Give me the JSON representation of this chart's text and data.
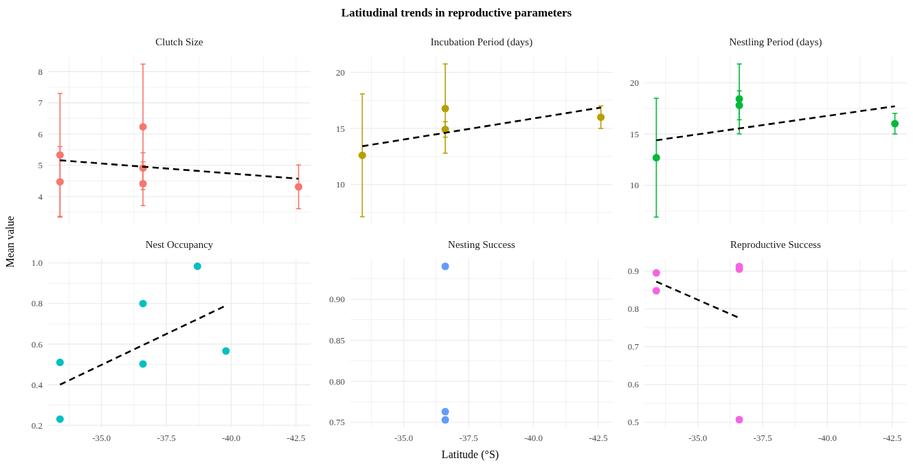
{
  "chart_data": [
    {
      "type": "scatter",
      "title": "Clutch Size",
      "annotations": [
        "Latitudinal trends in reproductive parameters"
      ],
      "grid": true,
      "tick_labels": "y",
      "xlim": [
        -32.94,
        -43.06
      ],
      "xticks": [
        {
          "value": -33.75,
          "label": null
        },
        {
          "value": -35,
          "label": null
        },
        {
          "value": -36.25,
          "label": null
        },
        {
          "value": -37.5,
          "label": null
        },
        {
          "value": -38.75,
          "label": null
        },
        {
          "value": -40,
          "label": null
        },
        {
          "value": -41.25,
          "label": null
        },
        {
          "value": -42.5,
          "label": null
        }
      ],
      "ylim": [
        3.1,
        8.49
      ],
      "yticks": [
        {
          "value": 3.5,
          "label": null
        },
        4,
        {
          "value": 4.5,
          "label": null
        },
        5,
        {
          "value": 5.5,
          "label": null
        },
        6,
        {
          "value": 6.5,
          "label": null
        },
        7,
        {
          "value": 7.5,
          "label": null
        },
        8
      ],
      "series": [
        {
          "type": "scatter",
          "color": "#f8766d",
          "marker": "circle",
          "x": [
            -33.4,
            -33.4,
            -36.6,
            -36.6,
            -36.6,
            -42.6
          ],
          "values": [
            5.33,
            4.47,
            6.23,
            4.91,
            4.41,
            4.31
          ],
          "errors": [
            1.97,
            1.13,
            2.01,
            0.49,
            0.7,
            0.7
          ]
        },
        {
          "type": "line",
          "color": "#000000",
          "line_style": "dashed",
          "marker": "none",
          "x": [
            -33.4,
            -42.6
          ],
          "values": [
            5.16,
            4.57
          ]
        }
      ]
    },
    {
      "type": "scatter",
      "title": "Incubation Period (days)",
      "grid": true,
      "tick_labels": "y",
      "xlim": [
        -32.94,
        -43.06
      ],
      "xticks": [
        {
          "value": -33.75,
          "label": null
        },
        {
          "value": -35,
          "label": null
        },
        {
          "value": -36.25,
          "label": null
        },
        {
          "value": -37.5,
          "label": null
        },
        {
          "value": -38.75,
          "label": null
        },
        {
          "value": -40,
          "label": null
        },
        {
          "value": -41.25,
          "label": null
        },
        {
          "value": -42.5,
          "label": null
        }
      ],
      "ylim": [
        6.42,
        21.43
      ],
      "yticks": [
        {
          "value": 7.5,
          "label": null
        },
        10,
        {
          "value": 12.5,
          "label": null
        },
        15,
        {
          "value": 17.5,
          "label": null
        },
        20
      ],
      "series": [
        {
          "type": "scatter",
          "color": "#b79f00",
          "marker": "circle",
          "x": [
            -33.4,
            -36.6,
            -36.6,
            -42.6
          ],
          "values": [
            12.6,
            16.77,
            14.91,
            16.0
          ],
          "errors": [
            5.48,
            3.98,
            0.69,
            1.0
          ]
        },
        {
          "type": "line",
          "color": "#000000",
          "line_style": "dashed",
          "marker": "none",
          "x": [
            -33.4,
            -42.6
          ],
          "values": [
            13.41,
            16.86
          ]
        }
      ]
    },
    {
      "type": "scatter",
      "title": "Nestling Period (days)",
      "grid": true,
      "tick_labels": "y",
      "xlim": [
        -32.94,
        -43.06
      ],
      "xticks": [
        {
          "value": -33.75,
          "label": null
        },
        {
          "value": -35,
          "label": null
        },
        {
          "value": -36.25,
          "label": null
        },
        {
          "value": -37.5,
          "label": null
        },
        {
          "value": -38.75,
          "label": null
        },
        {
          "value": -40,
          "label": null
        },
        {
          "value": -41.25,
          "label": null
        },
        {
          "value": -42.5,
          "label": null
        }
      ],
      "ylim": [
        6.17,
        22.59
      ],
      "yticks": [
        {
          "value": 7.5,
          "label": null
        },
        10,
        {
          "value": 12.5,
          "label": null
        },
        15,
        {
          "value": 17.5,
          "label": null
        },
        20
      ],
      "series": [
        {
          "type": "scatter",
          "color": "#00ba38",
          "marker": "circle",
          "x": [
            -33.4,
            -36.6,
            -36.6,
            -42.6
          ],
          "values": [
            12.7,
            18.43,
            17.81,
            16.02
          ],
          "errors": [
            5.8,
            3.41,
            1.41,
            1.0
          ]
        },
        {
          "type": "line",
          "color": "#000000",
          "line_style": "dashed",
          "marker": "none",
          "x": [
            -33.4,
            -42.6
          ],
          "values": [
            14.4,
            17.72
          ]
        }
      ]
    },
    {
      "type": "scatter",
      "title": "Nest Occupancy",
      "ylabel": "Mean value",
      "grid": true,
      "xlim": [
        -32.94,
        -43.06
      ],
      "xticks": [
        {
          "value": -33.75,
          "label": null
        },
        {
          "value": -35,
          "label": "-35.0"
        },
        {
          "value": -36.25,
          "label": null
        },
        {
          "value": -37.5,
          "label": "-37.5"
        },
        {
          "value": -38.75,
          "label": null
        },
        {
          "value": -40,
          "label": "-40.0"
        },
        {
          "value": -41.25,
          "label": null
        },
        {
          "value": -42.5,
          "label": "-42.5"
        }
      ],
      "ylim": [
        0.19,
        1.02
      ],
      "yticks": [
        {
          "value": 0.2,
          "label": "0.2"
        },
        {
          "value": 0.3,
          "label": null
        },
        {
          "value": 0.4,
          "label": "0.4"
        },
        {
          "value": 0.5,
          "label": null
        },
        {
          "value": 0.6,
          "label": "0.6"
        },
        {
          "value": 0.7,
          "label": null
        },
        {
          "value": 0.8,
          "label": "0.8"
        },
        {
          "value": 0.9,
          "label": null
        },
        {
          "value": 1.0,
          "label": "1.0"
        }
      ],
      "series": [
        {
          "type": "scatter",
          "color": "#00bfc4",
          "marker": "circle",
          "x": [
            -33.4,
            -33.4,
            -36.6,
            -36.6,
            -38.7,
            -39.8
          ],
          "values": [
            0.51,
            0.23,
            0.8,
            0.502,
            0.984,
            0.566
          ]
        },
        {
          "type": "line",
          "color": "#000000",
          "line_style": "dashed",
          "marker": "none",
          "x": [
            -33.4,
            -39.8
          ],
          "values": [
            0.4,
            0.79
          ]
        }
      ]
    },
    {
      "type": "scatter",
      "title": "Nesting Success",
      "xlabel": "Latitude (°S)",
      "grid": true,
      "xlim": [
        -32.94,
        -43.06
      ],
      "xticks": [
        {
          "value": -33.75,
          "label": null
        },
        {
          "value": -35,
          "label": "-35.0"
        },
        {
          "value": -36.25,
          "label": null
        },
        {
          "value": -37.5,
          "label": "-37.5"
        },
        {
          "value": -38.75,
          "label": null
        },
        {
          "value": -40,
          "label": "-40.0"
        },
        {
          "value": -41.25,
          "label": null
        },
        {
          "value": -42.5,
          "label": "-42.5"
        }
      ],
      "ylim": [
        0.744,
        0.949
      ],
      "yticks": [
        {
          "value": 0.75,
          "label": "0.75"
        },
        {
          "value": 0.775,
          "label": null
        },
        {
          "value": 0.8,
          "label": "0.80"
        },
        {
          "value": 0.825,
          "label": null
        },
        {
          "value": 0.85,
          "label": "0.85"
        },
        {
          "value": 0.875,
          "label": null
        },
        {
          "value": 0.9,
          "label": "0.90"
        },
        {
          "value": 0.925,
          "label": null
        }
      ],
      "series": [
        {
          "type": "scatter",
          "color": "#619cff",
          "marker": "circle",
          "x": [
            -36.6,
            -36.6,
            -36.6
          ],
          "values": [
            0.94,
            0.763,
            0.753
          ]
        }
      ]
    },
    {
      "type": "scatter",
      "title": "Reproductive Success",
      "grid": true,
      "xlim": [
        -32.94,
        -43.06
      ],
      "xticks": [
        {
          "value": -33.75,
          "label": null
        },
        {
          "value": -35,
          "label": "-35.0"
        },
        {
          "value": -36.25,
          "label": null
        },
        {
          "value": -37.5,
          "label": "-37.5"
        },
        {
          "value": -38.75,
          "label": null
        },
        {
          "value": -40,
          "label": "-40.0"
        },
        {
          "value": -41.25,
          "label": null
        },
        {
          "value": -42.5,
          "label": "-42.5"
        }
      ],
      "ylim": [
        0.487,
        0.932
      ],
      "yticks": [
        {
          "value": 0.5,
          "label": "0.5"
        },
        {
          "value": 0.55,
          "label": null
        },
        {
          "value": 0.6,
          "label": "0.6"
        },
        {
          "value": 0.65,
          "label": null
        },
        {
          "value": 0.7,
          "label": "0.7"
        },
        {
          "value": 0.75,
          "label": null
        },
        {
          "value": 0.8,
          "label": "0.8"
        },
        {
          "value": 0.85,
          "label": null
        },
        {
          "value": 0.9,
          "label": "0.9"
        }
      ],
      "series": [
        {
          "type": "scatter",
          "color": "#f564e3",
          "marker": "circle",
          "x": [
            -33.4,
            -33.4,
            -36.6,
            -36.6,
            -36.6
          ],
          "values": [
            0.895,
            0.848,
            0.912,
            0.905,
            0.507
          ]
        },
        {
          "type": "line",
          "color": "#000000",
          "line_style": "dashed",
          "marker": "none",
          "x": [
            -33.4,
            -36.6
          ],
          "values": [
            0.872,
            0.776
          ]
        }
      ]
    }
  ]
}
